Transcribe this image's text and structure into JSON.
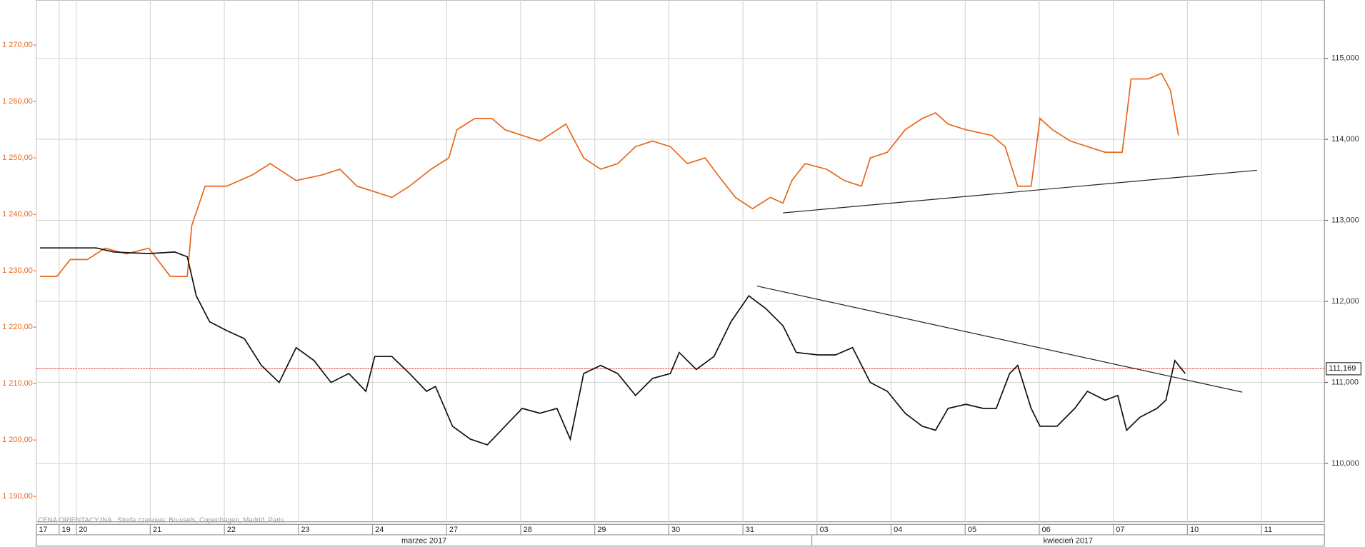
{
  "chart_data": {
    "type": "line",
    "footer": "CENA ORIENTACYJNA   Strefa czasowa: Brussels, Copenhagen, Madrid, Paris",
    "xlim": [
      2.46,
      19.85
    ],
    "xticks": [
      {
        "value": 2.46,
        "label": "17"
      },
      {
        "value": 2.77,
        "label": "19"
      },
      {
        "value": 3,
        "label": "20"
      },
      {
        "value": 4,
        "label": "21"
      },
      {
        "value": 5,
        "label": "22"
      },
      {
        "value": 6,
        "label": "23"
      },
      {
        "value": 7,
        "label": "24"
      },
      {
        "value": 8,
        "label": "27"
      },
      {
        "value": 9,
        "label": "28"
      },
      {
        "value": 10,
        "label": "29"
      },
      {
        "value": 11,
        "label": "30"
      },
      {
        "value": 12,
        "label": "31"
      },
      {
        "value": 13,
        "label": "03"
      },
      {
        "value": 14,
        "label": "04"
      },
      {
        "value": 15,
        "label": "05"
      },
      {
        "value": 16,
        "label": "06"
      },
      {
        "value": 17,
        "label": "07"
      },
      {
        "value": 18,
        "label": "10"
      },
      {
        "value": 19,
        "label": "11"
      }
    ],
    "months": [
      {
        "label": "marzec 2017",
        "start": 2.46,
        "end": 12.93
      },
      {
        "label": "kwiecień 2017",
        "start": 12.93,
        "end": 19.85
      }
    ],
    "ylim": [
      1185.5,
      1278.0
    ],
    "yticks": [
      {
        "value": 1190,
        "label": "1 190,00"
      },
      {
        "value": 1200,
        "label": "1 200,00"
      },
      {
        "value": 1210,
        "label": "1 210,00"
      },
      {
        "value": 1220,
        "label": "1 220,00"
      },
      {
        "value": 1230,
        "label": "1 230,00"
      },
      {
        "value": 1240,
        "label": "1 240,00"
      },
      {
        "value": 1250,
        "label": "1 250,00"
      },
      {
        "value": 1260,
        "label": "1 260,00"
      },
      {
        "value": 1270,
        "label": "1 270,00"
      }
    ],
    "y2lim": [
      109.28,
      115.72
    ],
    "y2ticks": [
      {
        "value": 110,
        "label": "110,000"
      },
      {
        "value": 111,
        "label": "111,000"
      },
      {
        "value": 112,
        "label": "112,000"
      },
      {
        "value": 113,
        "label": "113,000"
      },
      {
        "value": 114,
        "label": "114,000"
      },
      {
        "value": 115,
        "label": "115,000"
      }
    ],
    "grid": true,
    "series": [
      {
        "color": "#e8661c",
        "axis": "y",
        "x": [
          2.51,
          2.74,
          2.92,
          3.15,
          3.39,
          3.68,
          3.98,
          4.27,
          4.5,
          4.56,
          4.74,
          5.03,
          5.38,
          5.62,
          5.97,
          6.32,
          6.56,
          6.79,
          7.03,
          7.26,
          7.5,
          7.79,
          8.03,
          8.14,
          8.38,
          8.61,
          8.79,
          9.02,
          9.26,
          9.61,
          9.85,
          10.08,
          10.31,
          10.55,
          10.78,
          11.02,
          11.25,
          11.49,
          11.66,
          11.9,
          12.13,
          12.37,
          12.54,
          12.66,
          12.84,
          13.13,
          13.37,
          13.6,
          13.72,
          13.95,
          14.19,
          14.42,
          14.6,
          14.77,
          15.01,
          15.36,
          15.54,
          15.71,
          15.89,
          16.01,
          16.18,
          16.42,
          16.65,
          16.89,
          17.12,
          17.24,
          17.47,
          17.65,
          17.77,
          17.88
        ],
        "values": [
          1229,
          1229,
          1232,
          1232,
          1234,
          1233,
          1234,
          1229,
          1229,
          1238,
          1245,
          1245,
          1247,
          1249,
          1246,
          1247,
          1248,
          1245,
          1244,
          1243,
          1245,
          1248,
          1250,
          1255,
          1257,
          1257,
          1255,
          1254,
          1253,
          1256,
          1250,
          1248,
          1249,
          1252,
          1253,
          1252,
          1249,
          1250,
          1247,
          1243,
          1241,
          1243,
          1242,
          1246,
          1249,
          1248,
          1246,
          1245,
          1250,
          1251,
          1255,
          1257,
          1258,
          1256,
          1255,
          1254,
          1252,
          1245,
          1245,
          1257,
          1255,
          1253,
          1252,
          1251,
          1251,
          1264,
          1264,
          1265,
          1262,
          1254
        ]
      },
      {
        "color": "#111111",
        "axis": "y2",
        "x": [
          2.51,
          2.92,
          3.27,
          3.51,
          3.98,
          4.33,
          4.5,
          4.62,
          4.8,
          5.03,
          5.27,
          5.5,
          5.74,
          5.97,
          6.21,
          6.44,
          6.68,
          6.91,
          7.03,
          7.26,
          7.5,
          7.73,
          7.85,
          8.08,
          8.32,
          8.55,
          8.79,
          9.02,
          9.26,
          9.49,
          9.67,
          9.85,
          10.08,
          10.31,
          10.55,
          10.78,
          11.02,
          11.14,
          11.37,
          11.61,
          11.84,
          12.08,
          12.31,
          12.54,
          12.72,
          13.01,
          13.25,
          13.48,
          13.72,
          13.95,
          14.19,
          14.42,
          14.6,
          14.77,
          15.01,
          15.24,
          15.42,
          15.6,
          15.71,
          15.89,
          16.01,
          16.24,
          16.48,
          16.65,
          16.89,
          17.06,
          17.18,
          17.36,
          17.59,
          17.71,
          17.83,
          17.97
        ],
        "values": [
          112.66,
          112.66,
          112.66,
          112.61,
          112.59,
          112.61,
          112.55,
          112.07,
          111.75,
          111.64,
          111.54,
          111.21,
          111.0,
          111.43,
          111.27,
          111.0,
          111.11,
          110.89,
          111.32,
          111.32,
          111.11,
          110.89,
          110.95,
          110.46,
          110.3,
          110.23,
          110.46,
          110.68,
          110.62,
          110.68,
          110.3,
          111.11,
          111.21,
          111.11,
          110.84,
          111.05,
          111.11,
          111.37,
          111.16,
          111.32,
          111.75,
          112.07,
          111.91,
          111.7,
          111.37,
          111.34,
          111.34,
          111.43,
          111.0,
          110.89,
          110.62,
          110.46,
          110.41,
          110.68,
          110.73,
          110.68,
          110.68,
          111.11,
          111.21,
          110.68,
          110.46,
          110.46,
          110.68,
          110.89,
          110.78,
          110.84,
          110.41,
          110.57,
          110.68,
          110.78,
          111.27,
          111.11
        ]
      }
    ],
    "trendlines": [
      {
        "axis": "y",
        "color": "#222222",
        "x": [
          12.54,
          18.94
        ],
        "values": [
          1240.26,
          1247.81
        ]
      },
      {
        "axis": "y2",
        "color": "#222222",
        "x": [
          12.19,
          18.74
        ],
        "values": [
          112.19,
          110.88
        ]
      }
    ],
    "current_value": {
      "value": 111.169,
      "label": "111,169",
      "axis": "y2",
      "color": "#e05050"
    }
  }
}
